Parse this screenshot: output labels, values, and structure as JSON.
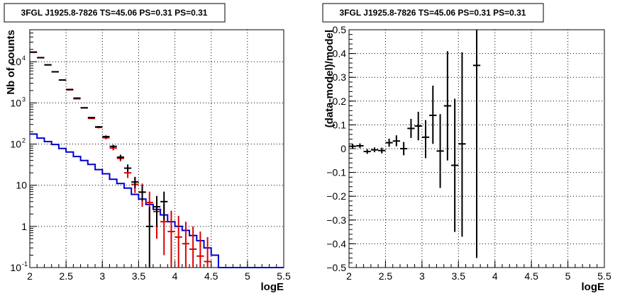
{
  "chart_data": [
    {
      "type": "line",
      "title": "3FGL J1925.8-7826 TS=45.06 PS=0.31 PS=0.31",
      "xlabel": "logE",
      "ylabel": "Nb of counts",
      "xlim": [
        2,
        5.5
      ],
      "ylim": [
        0.1,
        60000
      ],
      "yscale": "log",
      "grid": true,
      "x_ticks": [
        "2",
        "2.5",
        "3",
        "3.5",
        "4",
        "4.5",
        "5",
        "5.5"
      ],
      "y_ticks": [
        {
          "value": 0.1,
          "label": "10",
          "exp": "-1"
        },
        {
          "value": 1,
          "label": "1",
          "exp": ""
        },
        {
          "value": 10,
          "label": "10",
          "exp": ""
        },
        {
          "value": 100,
          "label": "10",
          "exp": "2"
        },
        {
          "value": 1000,
          "label": "10",
          "exp": "3"
        },
        {
          "value": 10000,
          "label": "10",
          "exp": "4"
        }
      ],
      "colors": {
        "data": "#000000",
        "model": "#dd0000",
        "background": "#0000cc"
      },
      "series": [
        {
          "x": [
            2.05,
            2.15,
            2.25,
            2.35,
            2.45,
            2.55,
            2.65,
            2.75,
            2.85,
            2.95,
            3.05,
            3.15,
            3.25,
            3.35,
            3.45,
            3.55,
            3.65,
            3.75,
            3.85
          ],
          "y": [
            17200,
            12600,
            8400,
            5700,
            3600,
            2120,
            1310,
            760,
            440,
            262,
            152,
            88,
            48,
            26,
            12,
            6.8,
            1,
            3,
            4
          ],
          "ylow": [
            17000,
            12400,
            8300,
            5600,
            3550,
            2080,
            1280,
            740,
            420,
            250,
            140,
            80,
            42,
            21,
            8.5,
            4.2,
            0.1,
            1,
            1.4
          ],
          "yhigh": [
            17400,
            12800,
            8500,
            5800,
            3650,
            2160,
            1340,
            780,
            460,
            275,
            162,
            96,
            55,
            32,
            16,
            10,
            3,
            5.5,
            7
          ]
        },
        {
          "x": [
            2.05,
            2.15,
            2.25,
            2.35,
            2.45,
            2.55,
            2.65,
            2.75,
            2.85,
            2.95,
            3.05,
            3.15,
            3.25,
            3.35,
            3.45,
            3.55,
            3.65,
            3.75,
            3.85,
            3.95,
            4.05,
            4.15,
            4.25,
            4.35,
            4.45
          ],
          "y": [
            17000,
            12500,
            8400,
            5700,
            3600,
            2080,
            1260,
            760,
            420,
            255,
            142,
            80,
            45,
            20,
            10.5,
            6.8,
            3.8,
            2.3,
            1.3,
            0.75,
            0.55,
            0.38,
            0.28,
            0.19,
            0.14
          ],
          "ylow": [
            16900,
            12400,
            8300,
            5600,
            3550,
            2050,
            1240,
            740,
            405,
            240,
            130,
            70,
            38,
            15,
            6.5,
            3,
            1.3,
            0.5,
            0.2,
            0.1,
            0.1,
            0.1,
            0.1,
            0.1,
            0.1
          ],
          "yhigh": [
            17100,
            12600,
            8500,
            5800,
            3650,
            2110,
            1280,
            780,
            435,
            270,
            155,
            90,
            53,
            27,
            15,
            11,
            7,
            5,
            3.5,
            2.4,
            1.8,
            1.3,
            1.0,
            0.75,
            0.55
          ]
        },
        {
          "edges": [
            2.0,
            2.1,
            2.2,
            2.3,
            2.4,
            2.5,
            2.6,
            2.7,
            2.8,
            2.9,
            3.0,
            3.1,
            3.2,
            3.3,
            3.4,
            3.5,
            3.6,
            3.7,
            3.8,
            3.9,
            4.0,
            4.1,
            4.2,
            4.3,
            4.4,
            4.5,
            4.6,
            5.5
          ],
          "values": [
            175,
            140,
            115,
            98,
            78,
            64,
            50,
            40,
            32,
            24,
            19,
            14,
            11,
            8.5,
            6,
            4.6,
            3.4,
            2.6,
            1.9,
            1.3,
            1.0,
            0.8,
            0.6,
            0.45,
            0.3,
            0.2,
            0.1
          ]
        }
      ]
    },
    {
      "type": "scatter",
      "title": "3FGL J1925.8-7826 TS=45.06 PS=0.31 PS=0.31",
      "xlabel": "logE",
      "ylabel": "(data-model)/model",
      "xlim": [
        2,
        5.5
      ],
      "ylim": [
        -0.5,
        0.5
      ],
      "grid": true,
      "x_ticks": [
        "2",
        "2.5",
        "3",
        "3.5",
        "4",
        "4.5",
        "5",
        "5.5"
      ],
      "y_ticks": [
        "−0.5",
        "−0.4",
        "−0.3",
        "−0.2",
        "−0.1",
        "0",
        "0.1",
        "0.2",
        "0.3",
        "0.4",
        "0.5"
      ],
      "points": {
        "x": [
          2.05,
          2.15,
          2.25,
          2.35,
          2.45,
          2.55,
          2.65,
          2.75,
          2.85,
          2.95,
          3.05,
          3.15,
          3.25,
          3.35,
          3.45,
          3.55,
          3.75
        ],
        "y": [
          0.01,
          0.012,
          -0.012,
          -0.005,
          -0.008,
          0.025,
          0.032,
          0.0,
          0.085,
          0.095,
          0.048,
          0.14,
          -0.01,
          0.18,
          -0.07,
          0.02,
          0.35
        ],
        "ylow": [
          0.0,
          0.002,
          -0.022,
          -0.015,
          -0.02,
          0.008,
          0.01,
          -0.028,
          0.045,
          0.035,
          -0.04,
          0.02,
          -0.165,
          -0.05,
          -0.35,
          -0.37,
          -0.46
        ],
        "yhigh": [
          0.02,
          0.022,
          -0.002,
          0.005,
          0.004,
          0.042,
          0.056,
          0.028,
          0.125,
          0.155,
          0.12,
          0.265,
          0.145,
          0.41,
          0.21,
          0.405,
          0.5
        ]
      }
    }
  ]
}
